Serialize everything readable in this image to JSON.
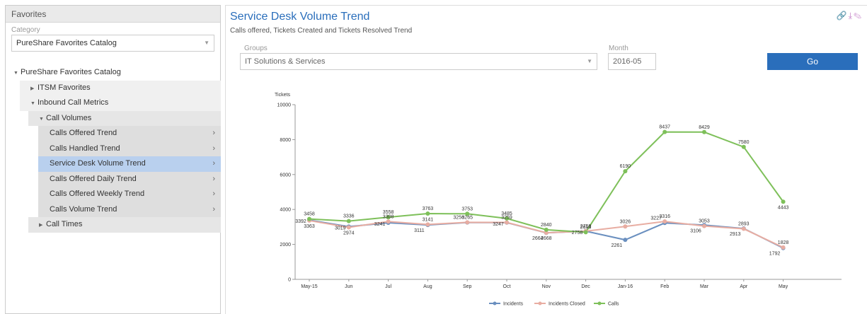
{
  "sidebar": {
    "header": "Favorites",
    "category_label": "Category",
    "category_value": "PureShare Favorites Catalog",
    "tree": [
      {
        "label": "PureShare Favorites Catalog",
        "level": 0,
        "toggle": "expanded"
      },
      {
        "label": "ITSM Favorites",
        "level": 1,
        "toggle": "collapsed"
      },
      {
        "label": "Inbound Call Metrics",
        "level": 1,
        "toggle": "expanded"
      },
      {
        "label": "Call Volumes",
        "level": 2,
        "toggle": "expanded"
      },
      {
        "label": "Calls Offered Trend",
        "level": 3,
        "chevron": true
      },
      {
        "label": "Calls Handled Trend",
        "level": 3,
        "chevron": true
      },
      {
        "label": "Service Desk Volume Trend",
        "level": 3,
        "chevron": true,
        "selected": true
      },
      {
        "label": "Calls Offered Daily Trend",
        "level": 3,
        "chevron": true
      },
      {
        "label": "Calls Offered Weekly Trend",
        "level": 3,
        "chevron": true
      },
      {
        "label": "Calls Volume Trend",
        "level": 3,
        "chevron": true
      },
      {
        "label": "Call Times",
        "level": 2,
        "toggle": "collapsed"
      }
    ]
  },
  "report": {
    "title": "Service Desk Volume Trend",
    "subtitle": "Calls offered, Tickets Created and Tickets Resolved Trend",
    "groups_label": "Groups",
    "groups_value": "IT Solutions & Services",
    "month_label": "Month",
    "month_value": "2016-05",
    "go_label": "Go",
    "tool_icons": [
      "link-icon",
      "download-icon",
      "eraser-icon"
    ]
  },
  "chart_data": {
    "type": "line",
    "ylabel": "Tickets",
    "ylim": [
      0,
      10000
    ],
    "yticks": [
      0,
      2000,
      4000,
      6000,
      8000,
      10000
    ],
    "categories": [
      "May-15",
      "Jun",
      "Jul",
      "Aug",
      "Sep",
      "Oct",
      "Nov",
      "Dec",
      "Jan-16",
      "Feb",
      "Mar",
      "Apr",
      "May"
    ],
    "series": [
      {
        "name": "Incidents",
        "color": "#6a8fbf",
        "values": [
          3392,
          3019,
          3241,
          3111,
          3256,
          3247,
          2664,
          2758,
          2261,
          3227,
          3106,
          2913,
          1792
        ]
      },
      {
        "name": "Incidents Closed",
        "color": "#e8ada2",
        "values": [
          3363,
          2974,
          3308,
          3141,
          3265,
          3259,
          2668,
          2759,
          3026,
          3316,
          3053,
          2893,
          1828
        ]
      },
      {
        "name": "Calls",
        "color": "#7ec05a",
        "values": [
          3458,
          3336,
          3558,
          3763,
          3753,
          3485,
          2840,
          2699,
          6190,
          8437,
          8429,
          7580,
          4443
        ]
      }
    ],
    "legend": "bottom-center",
    "grid": false
  }
}
